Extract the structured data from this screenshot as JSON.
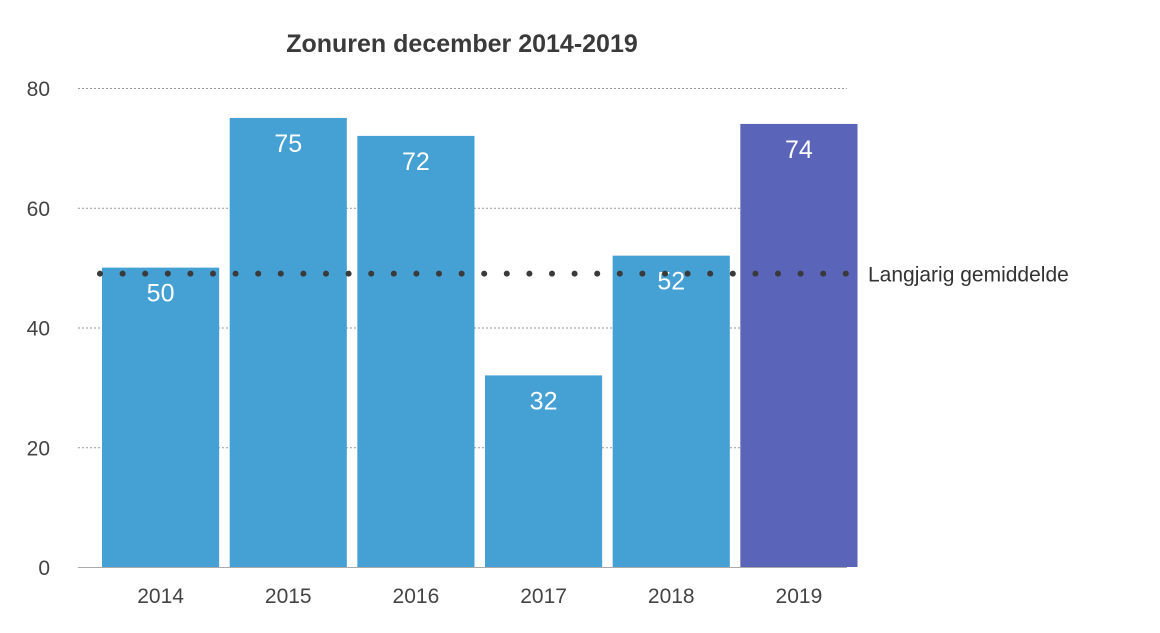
{
  "chart_data": {
    "type": "bar",
    "title": "Zonuren december 2014-2019",
    "xlabel": "",
    "ylabel": "",
    "categories": [
      "2014",
      "2015",
      "2016",
      "2017",
      "2018",
      "2019"
    ],
    "values": [
      50,
      75,
      72,
      32,
      52,
      74
    ],
    "ylim": [
      0,
      80
    ],
    "yticks": [
      0,
      20,
      40,
      60,
      80
    ],
    "grid": true,
    "data_labels": true,
    "bar_colors": [
      "#45a0d4",
      "#45a0d4",
      "#45a0d4",
      "#45a0d4",
      "#45a0d4",
      "#5a64b9"
    ],
    "reference_line": {
      "label": "Langjarig gemiddelde",
      "value": 49,
      "style": "dotted",
      "color": "#3a3a3a"
    }
  }
}
